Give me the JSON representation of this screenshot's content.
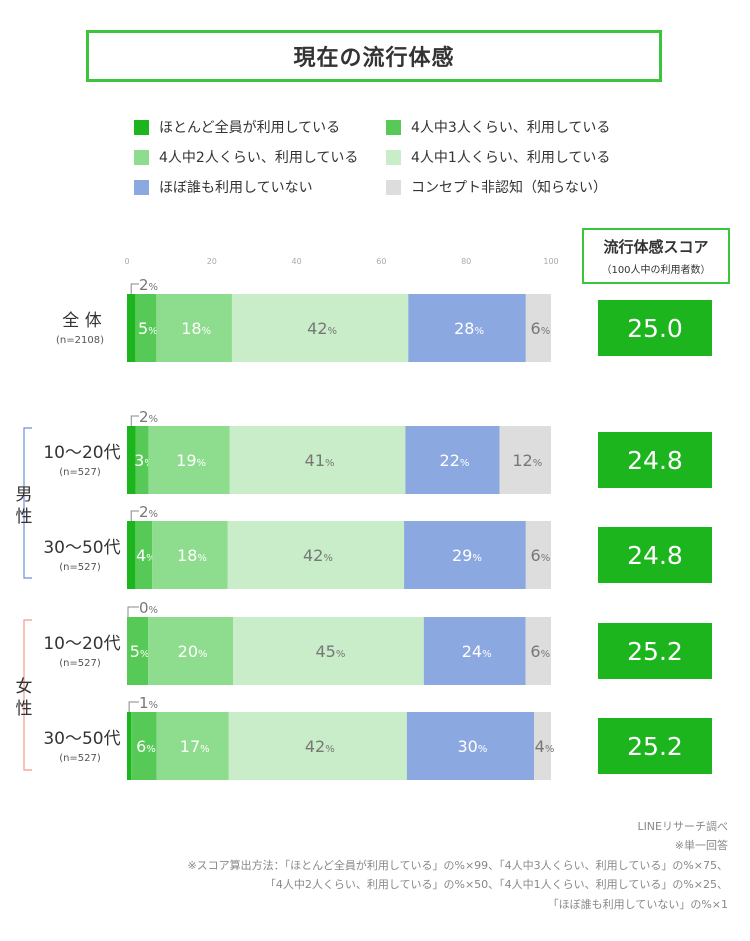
{
  "title": "現在の流行体感",
  "legend": [
    {
      "label": "ほとんど全員が利用している",
      "color": "#1db51d"
    },
    {
      "label": "4人中3人くらい、利用している",
      "color": "#57c957"
    },
    {
      "label": "4人中2人くらい、利用している",
      "color": "#8edc8e"
    },
    {
      "label": "4人中1人くらい、利用している",
      "color": "#c8edc8"
    },
    {
      "label": "ほぼ誰も利用していない",
      "color": "#8ca8e0"
    },
    {
      "label": "コンセプト非認知（知らない）",
      "color": "#dddddd"
    }
  ],
  "score_header": {
    "title": "流行体感スコア",
    "subtitle": "（100人中の利用者数）"
  },
  "group_labels": {
    "male": "男\n性",
    "female": "女\n性"
  },
  "chart_data": {
    "type": "bar",
    "orientation": "horizontal",
    "stacked": true,
    "unit": "%",
    "xlim": [
      0,
      100
    ],
    "ticks": [
      "0",
      "20",
      "40",
      "60",
      "80",
      "100"
    ],
    "rows": [
      {
        "label": "全 体",
        "n": "(n=2108)",
        "values": [
          2,
          5,
          18,
          42,
          28,
          6
        ],
        "score": "25.0"
      },
      {
        "label": "10〜20代",
        "n": "(n=527)",
        "values": [
          2,
          3,
          19,
          41,
          22,
          12
        ],
        "score": "24.8"
      },
      {
        "label": "30〜50代",
        "n": "(n=527)",
        "values": [
          2,
          4,
          18,
          42,
          29,
          6
        ],
        "score": "24.8"
      },
      {
        "label": "10〜20代",
        "n": "(n=527)",
        "values": [
          0,
          5,
          20,
          45,
          24,
          6
        ],
        "score": "25.2"
      },
      {
        "label": "30〜50代",
        "n": "(n=527)",
        "values": [
          1,
          6,
          17,
          42,
          30,
          4
        ],
        "score": "25.2"
      }
    ],
    "series_colors": [
      "#1db51d",
      "#57c957",
      "#8edc8e",
      "#c8edc8",
      "#8ca8e0",
      "#dddddd"
    ],
    "label_colors": [
      "#777777",
      "#ffffff",
      "#ffffff",
      "#777777",
      "#ffffff",
      "#777777"
    ],
    "score_color": "#1db51d"
  },
  "footnotes": [
    "LINEリサーチ調べ",
    "※単一回答",
    "※スコア算出方法：「ほとんど全員が利用している」の%×99、「4人中3人くらい、利用している」の%×75、",
    "「4人中2人くらい、利用している」の%×50、「4人中1人くらい、利用している」の%×25、",
    "「ほぼ誰も利用していない」の%×1"
  ]
}
